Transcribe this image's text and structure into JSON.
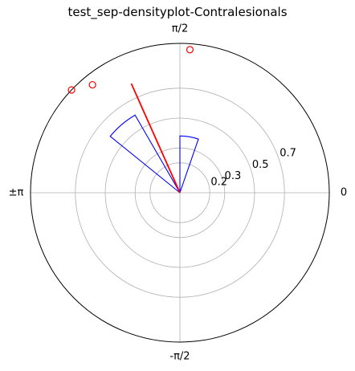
{
  "chart_data": {
    "type": "polar-histogram",
    "title": "test_sep-densityplot-Contralesionals",
    "angle_tick_labels": [
      {
        "label": "0",
        "angle_deg": 0
      },
      {
        "label": "π/2",
        "angle_deg": 90
      },
      {
        "label": "±π",
        "angle_deg": 180
      },
      {
        "label": "-π/2",
        "angle_deg": -90
      }
    ],
    "radial_ticks": [
      {
        "label": "0.2",
        "value": 0.2
      },
      {
        "label": "0.3",
        "value": 0.3
      },
      {
        "label": "0.5",
        "value": 0.5
      },
      {
        "label": "0.7",
        "value": 0.7
      }
    ],
    "rlim": [
      0,
      1.0
    ],
    "grid": true,
    "grid_radii": [
      0.2,
      0.3,
      0.5,
      0.7
    ],
    "bars": [
      {
        "theta_start_deg": 71,
        "theta_end_deg": 90,
        "r": 0.38,
        "color": "#0000ff"
      },
      {
        "theta_start_deg": 120,
        "theta_end_deg": 141,
        "r": 0.6,
        "color": "#0000ff"
      }
    ],
    "mean_vector": {
      "theta_deg": 114,
      "r": 0.8,
      "color": "#ff0000"
    },
    "points": [
      {
        "theta_deg": 86,
        "r": 0.96,
        "color": "#ff0000"
      },
      {
        "theta_deg": 129,
        "r": 0.93,
        "color": "#ff0000"
      },
      {
        "theta_deg": 136.5,
        "r": 1.0,
        "color": "#ff0000"
      }
    ]
  }
}
